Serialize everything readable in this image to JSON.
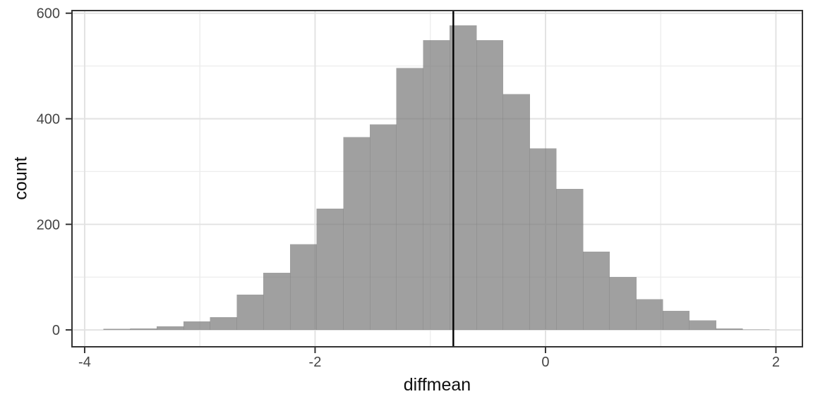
{
  "chart_data": {
    "type": "bar",
    "subtype": "histogram",
    "title": "",
    "xlabel": "diffmean",
    "ylabel": "count",
    "x_axis": {
      "domain": [
        -4.11,
        2.23
      ],
      "ticks": [
        -4,
        -2,
        0,
        2
      ],
      "tick_labels": [
        "-4",
        "-2",
        "0",
        "2"
      ],
      "minor_gridlines": [
        -3,
        -1,
        1
      ]
    },
    "y_axis": {
      "domain": [
        -32,
        605
      ],
      "ticks": [
        0,
        200,
        400,
        600
      ],
      "tick_labels": [
        "0",
        "200",
        "400",
        "600"
      ],
      "minor_gridlines": [
        100,
        300,
        500
      ]
    },
    "bin_width": 0.2311,
    "bins": [
      {
        "x0": -3.836,
        "x1": -3.605,
        "count": 2
      },
      {
        "x0": -3.605,
        "x1": -3.374,
        "count": 3
      },
      {
        "x0": -3.374,
        "x1": -3.143,
        "count": 7
      },
      {
        "x0": -3.143,
        "x1": -2.912,
        "count": 16
      },
      {
        "x0": -2.912,
        "x1": -2.681,
        "count": 24
      },
      {
        "x0": -2.681,
        "x1": -2.45,
        "count": 67
      },
      {
        "x0": -2.45,
        "x1": -2.218,
        "count": 108
      },
      {
        "x0": -2.218,
        "x1": -1.987,
        "count": 162
      },
      {
        "x0": -1.987,
        "x1": -1.756,
        "count": 230
      },
      {
        "x0": -1.756,
        "x1": -1.525,
        "count": 365
      },
      {
        "x0": -1.525,
        "x1": -1.294,
        "count": 389
      },
      {
        "x0": -1.294,
        "x1": -1.063,
        "count": 496
      },
      {
        "x0": -1.063,
        "x1": -0.832,
        "count": 549
      },
      {
        "x0": -0.832,
        "x1": -0.601,
        "count": 577
      },
      {
        "x0": -0.601,
        "x1": -0.37,
        "count": 549
      },
      {
        "x0": -0.37,
        "x1": -0.139,
        "count": 447
      },
      {
        "x0": -0.139,
        "x1": 0.092,
        "count": 344
      },
      {
        "x0": 0.092,
        "x1": 0.324,
        "count": 267
      },
      {
        "x0": 0.324,
        "x1": 0.555,
        "count": 148
      },
      {
        "x0": 0.555,
        "x1": 0.786,
        "count": 100
      },
      {
        "x0": 0.786,
        "x1": 1.017,
        "count": 58
      },
      {
        "x0": 1.017,
        "x1": 1.248,
        "count": 36
      },
      {
        "x0": 1.248,
        "x1": 1.479,
        "count": 18
      },
      {
        "x0": 1.479,
        "x1": 1.71,
        "count": 3
      },
      {
        "x0": 1.71,
        "x1": 1.941,
        "count": 1
      }
    ],
    "vline_x": -0.8,
    "legend": null,
    "grid": true,
    "colors": {
      "background": "#ffffff",
      "bar_fill_rgba": "rgba(124,124,124,0.72)",
      "grid_major": "#e2e2e2",
      "grid_minor": "#ececec",
      "panel_border": "#343434",
      "tick_mark": "#343434",
      "tick_text": "#454545",
      "axis_title_text": "#0f0f0f",
      "vline": "#000000"
    }
  }
}
